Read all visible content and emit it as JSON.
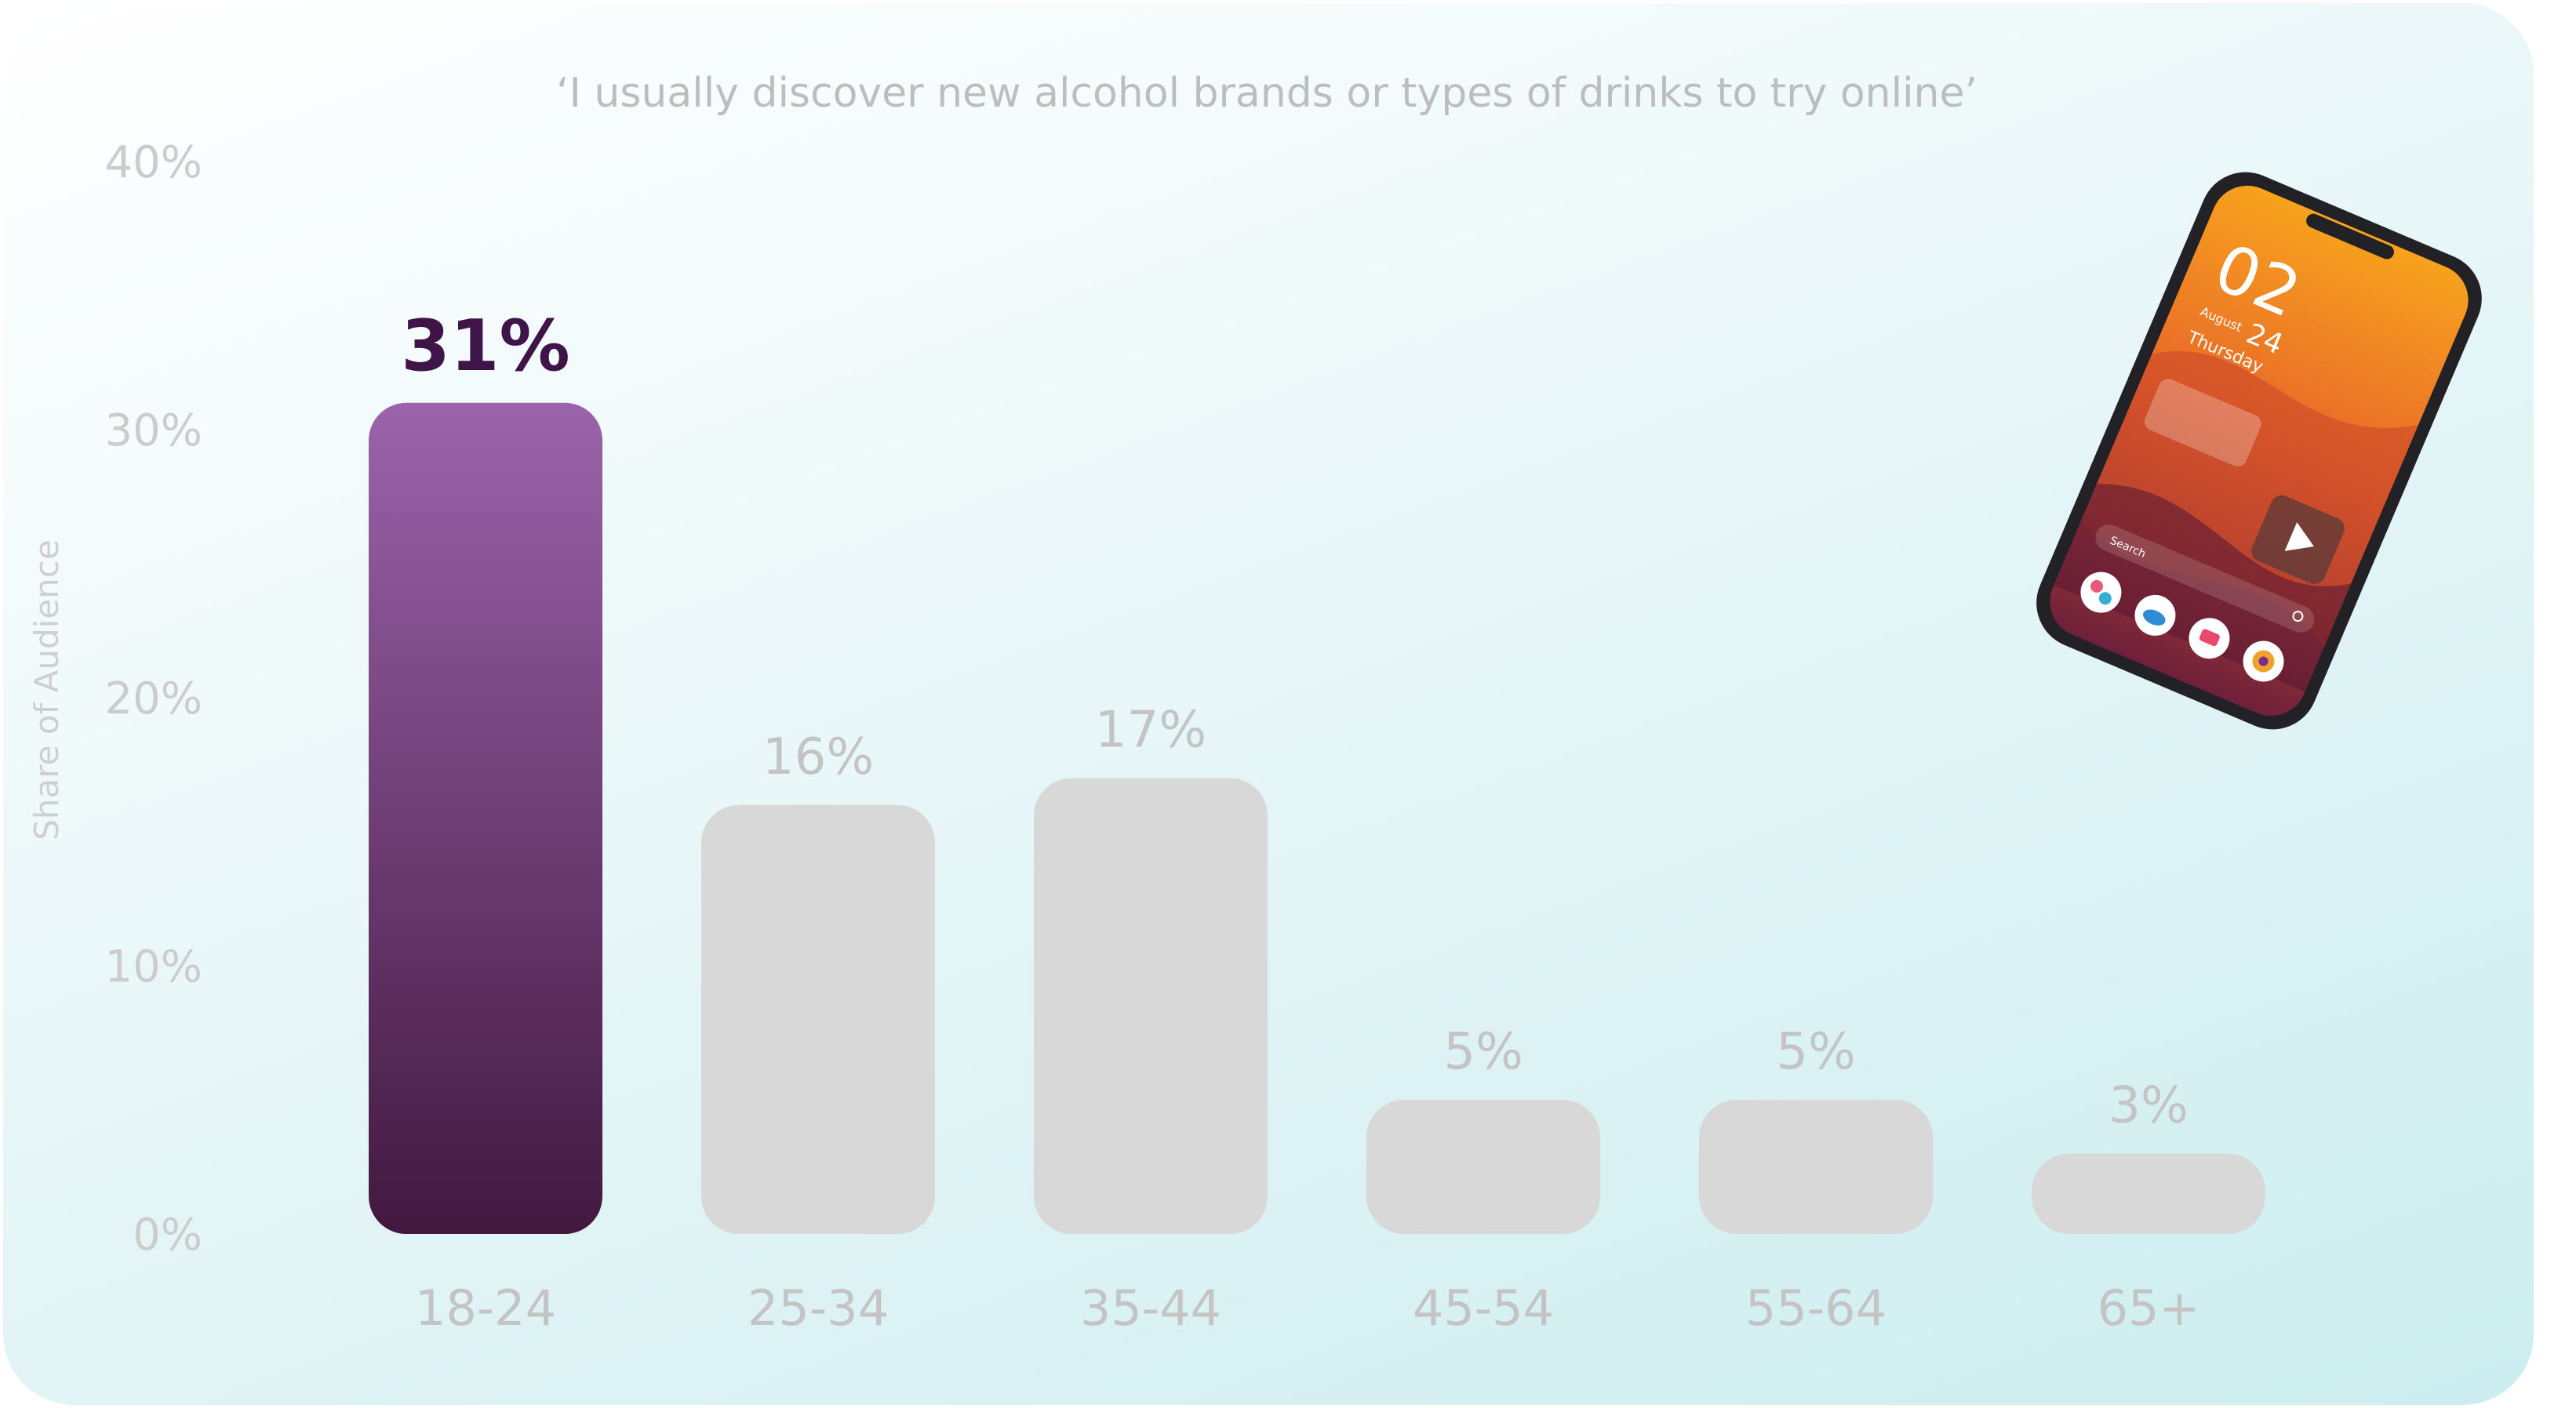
{
  "chart_data": {
    "type": "bar",
    "title": "‘I usually discover new alcohol brands or types of drinks to try online’",
    "ylabel": "Share of Audience",
    "xlabel": "",
    "categories": [
      "18-24",
      "25-34",
      "35-44",
      "45-54",
      "55-64",
      "65+"
    ],
    "values": [
      31,
      16,
      17,
      5,
      5,
      3
    ],
    "value_labels": [
      "31%",
      "16%",
      "17%",
      "5%",
      "5%",
      "3%"
    ],
    "highlight_index": 0,
    "ylim": [
      0,
      40
    ],
    "yticks": [
      0,
      10,
      20,
      30,
      40
    ],
    "ytick_labels": [
      "0%",
      "10%",
      "20%",
      "30%",
      "40%"
    ],
    "grid": false,
    "legend": "none",
    "colors": {
      "highlight_top": "#9b64ab",
      "highlight_bottom": "#42183f",
      "bar": "#d8d8d8",
      "highlight_label": "#3f1449",
      "muted_text": "#c4c4c4"
    }
  },
  "phone": {
    "time": "02",
    "date_month": "August",
    "date_day": "24",
    "weekday": "Thursday",
    "search_label": "Search",
    "icons": [
      "flower-app-icon",
      "cloud-app-icon",
      "chat-app-icon",
      "target-app-icon",
      "play-icon",
      "search-icon"
    ]
  }
}
